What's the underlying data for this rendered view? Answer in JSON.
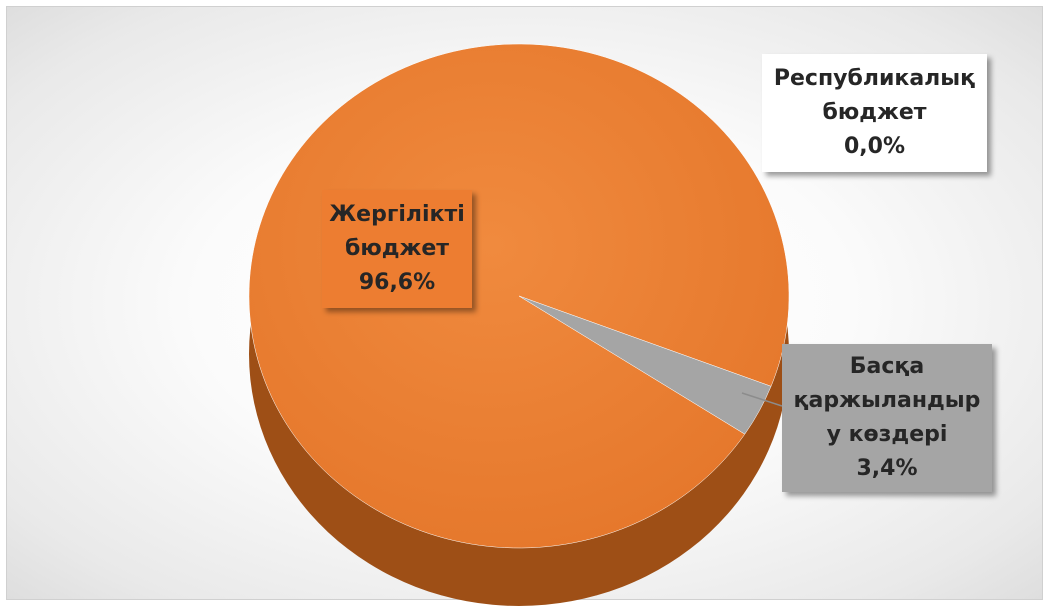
{
  "chart_data": {
    "type": "pie",
    "title": "",
    "slices": [
      {
        "name": "Жергілікті бюджет",
        "label_lines": [
          "Жергілікті",
          "бюджет"
        ],
        "value": 96.6,
        "value_label": "96,6%",
        "color": "#ED7D31"
      },
      {
        "name": "Басқа қаржыландыру көздері",
        "label_lines": [
          "Басқа",
          "қаржыландыр",
          "у көздері"
        ],
        "value": 3.4,
        "value_label": "3,4%",
        "color": "#A5A5A5"
      },
      {
        "name": "Республикалық бюджет",
        "label_lines": [
          "Республикалық",
          "бюджет"
        ],
        "value": 0.0,
        "value_label": "0,0%",
        "color": "#4472C4"
      }
    ],
    "legend": "none"
  }
}
